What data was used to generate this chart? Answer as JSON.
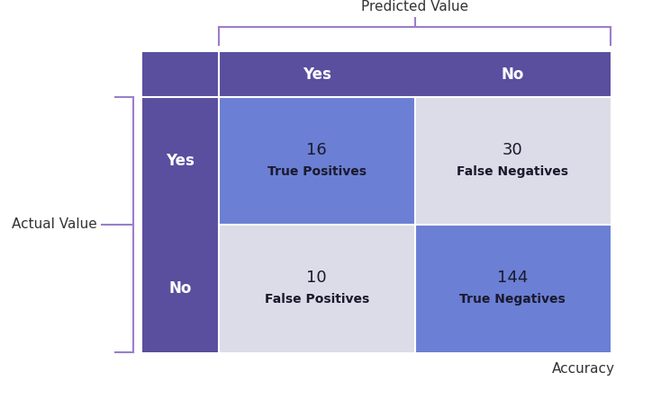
{
  "title": "Predicted Value",
  "left_label": "Actual Value",
  "bottom_right_label": "Accuracy",
  "col_headers": [
    "Yes",
    "No"
  ],
  "row_headers": [
    "Yes",
    "No"
  ],
  "cells": [
    {
      "value": "16",
      "label": "True Positives",
      "row": 0,
      "col": 0,
      "highlighted": true
    },
    {
      "value": "30",
      "label": "False Negatives",
      "row": 0,
      "col": 1,
      "highlighted": false
    },
    {
      "value": "10",
      "label": "False Positives",
      "row": 1,
      "col": 0,
      "highlighted": false
    },
    {
      "value": "144",
      "label": "True Negatives",
      "row": 1,
      "col": 1,
      "highlighted": true
    }
  ],
  "header_bg_color": "#5a4e9f",
  "highlighted_cell_color": "#6b7fd4",
  "unhighlighted_cell_color": "#dcdce8",
  "header_text_color": "#ffffff",
  "cell_text_color": "#1a1a2e",
  "bracket_color": "#9b7ecb",
  "background_color": "#ffffff",
  "value_fontsize": 13,
  "label_fontsize": 10,
  "header_fontsize": 12,
  "outer_label_fontsize": 11
}
